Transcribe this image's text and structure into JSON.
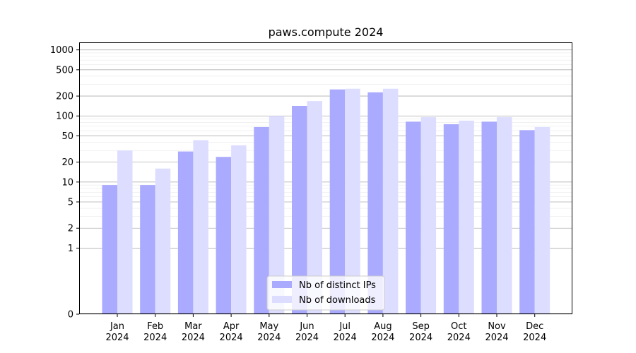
{
  "chart_data": {
    "type": "bar",
    "title": "paws.compute 2024",
    "xlabel": "",
    "ylabel": "",
    "yscale": "symlog",
    "ylim": [
      0,
      1300
    ],
    "yticks": [
      0,
      1,
      2,
      5,
      10,
      20,
      50,
      100,
      200,
      500,
      1000
    ],
    "ytick_labels": [
      "0",
      "1",
      "2",
      "5",
      "10",
      "20",
      "50",
      "100",
      "200",
      "500",
      "1000"
    ],
    "grid": true,
    "legend_position": "bottom-center",
    "categories": [
      [
        "Jan",
        "2024"
      ],
      [
        "Feb",
        "2024"
      ],
      [
        "Mar",
        "2024"
      ],
      [
        "Apr",
        "2024"
      ],
      [
        "May",
        "2024"
      ],
      [
        "Jun",
        "2024"
      ],
      [
        "Jul",
        "2024"
      ],
      [
        "Aug",
        "2024"
      ],
      [
        "Sep",
        "2024"
      ],
      [
        "Oct",
        "2024"
      ],
      [
        "Nov",
        "2024"
      ],
      [
        "Dec",
        "2024"
      ]
    ],
    "series": [
      {
        "name": "Nb of distinct IPs",
        "color": "#aaaaff",
        "values": [
          9,
          9,
          29,
          24,
          68,
          142,
          252,
          228,
          82,
          75,
          82,
          61
        ]
      },
      {
        "name": "Nb of downloads",
        "color": "#ddddff",
        "values": [
          30,
          16,
          43,
          36,
          100,
          168,
          258,
          258,
          96,
          85,
          96,
          68
        ]
      }
    ]
  }
}
